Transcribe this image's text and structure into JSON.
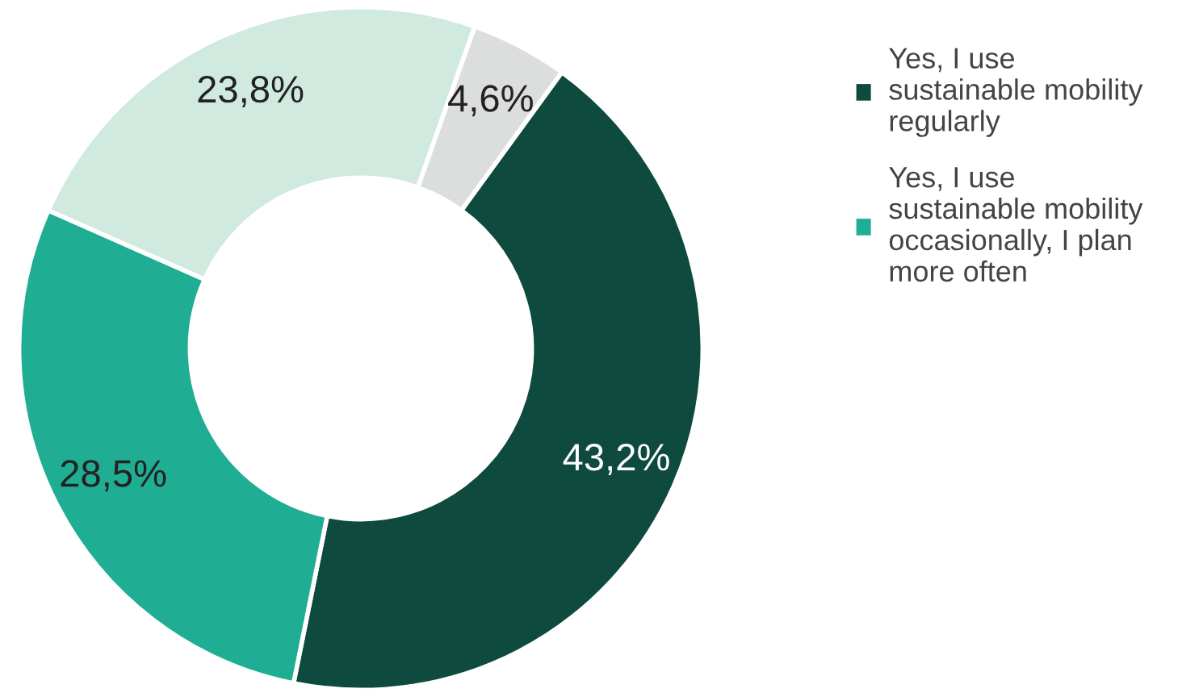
{
  "chart_data": {
    "type": "donut",
    "categories": [
      "Yes, I use sustainable mobility regularly",
      "Yes, I use sustainable mobility occasionally, I plan more often",
      null,
      null
    ],
    "values": [
      43.2,
      28.5,
      23.8,
      4.6
    ],
    "colors": [
      "#0e4a3e",
      "#1fae94",
      "#d0eadf",
      "#dcdedd"
    ],
    "value_labels": [
      "43,2%",
      "28,5%",
      "23,8%",
      "4,6%"
    ],
    "legend": "right"
  }
}
